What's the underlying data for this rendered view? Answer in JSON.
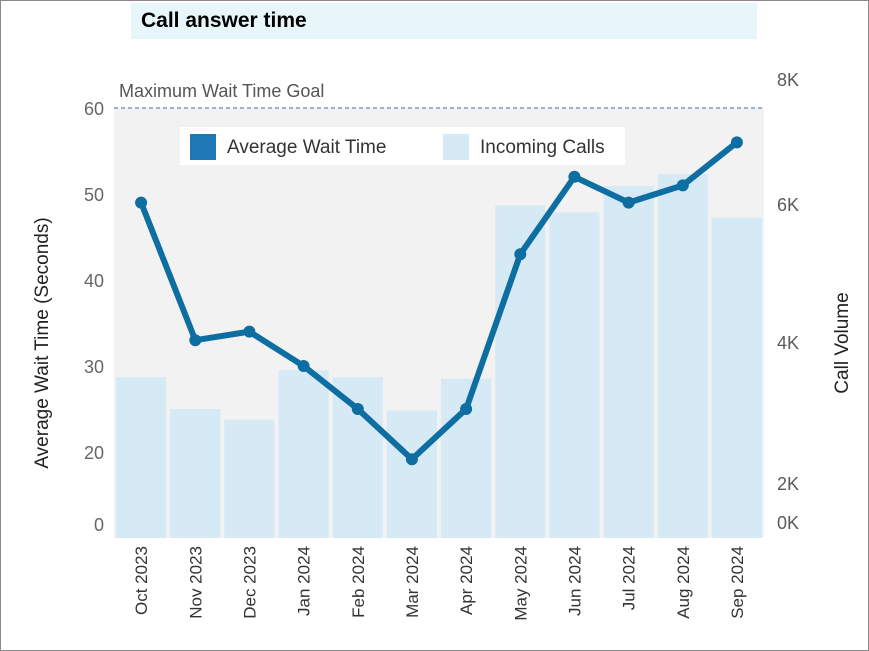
{
  "header": {
    "title": "Call answer time"
  },
  "chart_data": {
    "type": "bar+line",
    "title": "Call answer time",
    "categories": [
      "Oct 2023",
      "Nov 2023",
      "Dec 2023",
      "Jan 2024",
      "Feb 2024",
      "Mar 2024",
      "Apr 2024",
      "May 2024",
      "Jun 2024",
      "Jul 2024",
      "Aug 2024",
      "Sep 2024"
    ],
    "series": [
      {
        "name": "Average Wait Time",
        "kind": "line",
        "axis": "left",
        "color": "#0e6ea1",
        "values": [
          49,
          33,
          34,
          30,
          25,
          18,
          25,
          43,
          52,
          49,
          51,
          56
        ]
      },
      {
        "name": "Incoming Calls",
        "kind": "bar",
        "axis": "right",
        "color": "#d6eaf6",
        "values": [
          3500,
          3050,
          2900,
          3600,
          3500,
          3030,
          3480,
          5980,
          5880,
          6290,
          6480,
          5800
        ]
      }
    ],
    "left_axis": {
      "label": "Average Wait Time (Seconds)",
      "ticks": [
        "0",
        "20",
        "30",
        "40",
        "50",
        "60"
      ],
      "tick_values": [
        0,
        20,
        30,
        40,
        50,
        60
      ],
      "range": [
        0,
        60
      ]
    },
    "right_axis": {
      "label": "Call Volume",
      "ticks": [
        "0K",
        "2K",
        "4K",
        "6K",
        "8K"
      ],
      "tick_values": [
        0,
        2000,
        4000,
        6000,
        8000
      ]
    },
    "reference_line": {
      "label": "Maximum Wait Time Goal",
      "value": 60,
      "axis": "left",
      "color": "#7f9bc8"
    },
    "legend": {
      "position": "top-center",
      "items": [
        {
          "label": "Average Wait Time",
          "color": "#1f78b4"
        },
        {
          "label": "Incoming Calls",
          "color": "#d6eaf6"
        }
      ]
    },
    "plot_background": "#f2f2f2",
    "grid": false
  }
}
